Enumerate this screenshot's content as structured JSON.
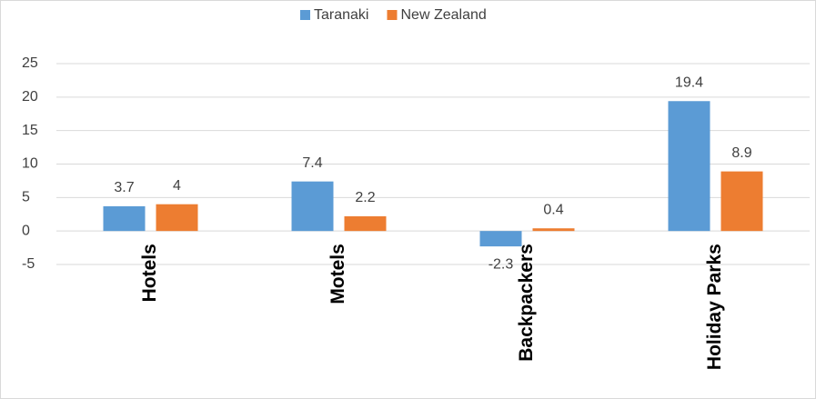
{
  "chart_data": {
    "type": "bar",
    "categories": [
      "Hotels",
      "Motels",
      "Backpackers",
      "Holiday Parks"
    ],
    "series": [
      {
        "name": "Taranaki",
        "color": "#5b9bd5",
        "values": [
          3.7,
          7.4,
          -2.3,
          19.4
        ]
      },
      {
        "name": "New Zealand",
        "color": "#ed7d31",
        "values": [
          4,
          2.2,
          0.4,
          8.9
        ]
      }
    ],
    "ylim": [
      -5,
      25
    ],
    "yticks": [
      -5,
      0,
      5,
      10,
      15,
      20,
      25
    ],
    "grid": true,
    "legend": "top"
  }
}
